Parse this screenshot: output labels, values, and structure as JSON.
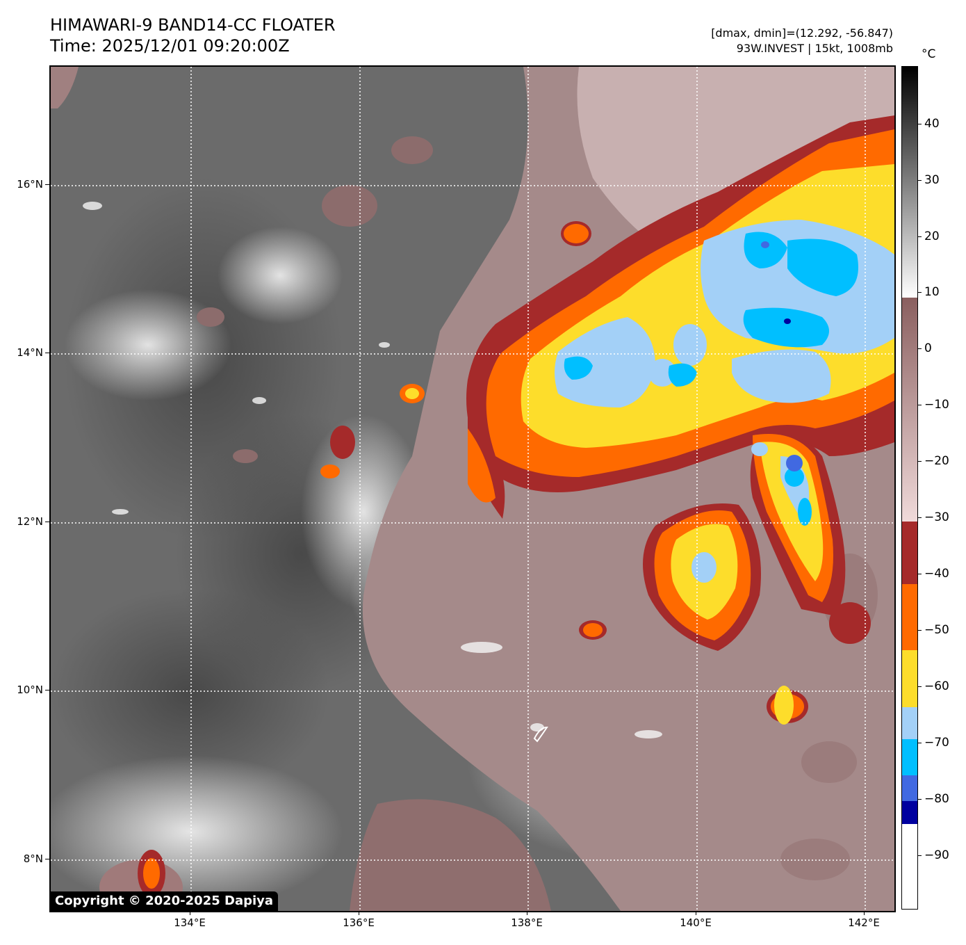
{
  "title": {
    "line1": "HIMAWARI-9 BAND14-CC FLOATER",
    "line2": "Time: 2025/12/01 09:20:00Z"
  },
  "info": {
    "line1": "[dmax, dmin]=(12.292, -56.847)",
    "line2": "93W.INVEST | 15kt, 1008mb"
  },
  "map": {
    "lat_labels": [
      "16°N",
      "14°N",
      "12°N",
      "10°N",
      "8°N"
    ],
    "lon_labels": [
      "134°E",
      "136°E",
      "138°E",
      "140°E",
      "142°E"
    ],
    "lat_range": [
      7.4,
      17.4
    ],
    "lon_range": [
      132.4,
      142.4
    ],
    "gridlines": "dotted white",
    "copyright": "Copyright © 2020-2025 Dapiya"
  },
  "colorbar": {
    "unit": "°C",
    "labels": [
      "40",
      "30",
      "20",
      "10",
      "0",
      "−10",
      "−20",
      "−30",
      "−40",
      "−50",
      "−60",
      "−70",
      "−80",
      "−90"
    ],
    "range": [
      -100,
      50
    ],
    "colors": {
      "black": "#000000",
      "white": "#ffffff",
      "brown_light": "#f0dada",
      "brown_dark": "#8a5f5f",
      "dark_red": "#a52a2a",
      "orange": "#ff6a00",
      "yellow": "#fddd2b",
      "light_blue": "#a3d0f7",
      "cyan": "#00bfff",
      "royal_blue": "#4169e1",
      "navy": "#00009f"
    }
  }
}
